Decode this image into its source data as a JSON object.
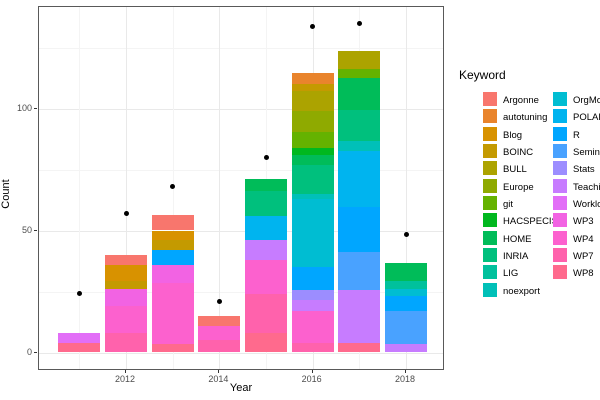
{
  "figure": {
    "y_axis": {
      "title": "Count",
      "tick_labels": [
        "0",
        "50",
        "100"
      ]
    },
    "x_axis": {
      "title": "Year",
      "tick_labels": [
        "2012",
        "2014",
        "2016",
        "2018"
      ]
    },
    "legend": {
      "title": "Keyword",
      "column1": [
        "Argonne",
        "autotuning",
        "Blog",
        "BOINC",
        "BULL",
        "Europe",
        "git",
        "HACSPECIS",
        "HOME",
        "INRIA",
        "LIG",
        "noexport"
      ],
      "column2": [
        "OrgMode",
        "POLARIS",
        "R",
        "Seminar",
        "Stats",
        "Teaching",
        "Workload",
        "WP3",
        "WP4",
        "WP7",
        "WP8"
      ]
    }
  },
  "chart_data": {
    "type": "bar",
    "stacked": true,
    "title": "",
    "xlabel": "Year",
    "ylabel": "Count",
    "legend_title": "Keyword",
    "legend_position": "right",
    "grid": true,
    "background": "#ffffff",
    "ylim": [
      -7.5,
      141.5
    ],
    "yticks": [
      0,
      50,
      100
    ],
    "yticks_minor": [
      25,
      75,
      125
    ],
    "xticks": [
      2012,
      2014,
      2016,
      2018
    ],
    "xticks_minor": [
      2011,
      2013,
      2015,
      2017
    ],
    "x": [
      2011,
      2012,
      2013,
      2014,
      2015,
      2016,
      2017,
      2018
    ],
    "palette": {
      "Argonne": "#F8766D",
      "autotuning": "#E9842C",
      "Blog": "#D89200",
      "BOINC": "#C49A00",
      "BULL": "#ACA300",
      "Europe": "#8FAA00",
      "git": "#65B200",
      "HACSPECIS": "#00B81F",
      "HOME": "#00BC59",
      "INRIA": "#00C07D",
      "LIG": "#00C19C",
      "noexport": "#00C0B8",
      "OrgMode": "#00BDD2",
      "POLARIS": "#00B4EF",
      "R": "#00A6FF",
      "Seminar": "#49A2FF",
      "Stats": "#9C8DFF",
      "Teaching": "#C77CFF",
      "Workload": "#E26EF7",
      "WP3": "#F263E3",
      "WP4": "#FC61CE",
      "WP7": "#FF62AC",
      "WP8": "#FF6A8D"
    },
    "bars": [
      {
        "year": 2011,
        "total": 8,
        "segments_bottom_to_top": [
          [
            "WP8",
            4
          ],
          [
            "Workload",
            4
          ]
        ]
      },
      {
        "year": 2012,
        "total": 40,
        "segments_bottom_to_top": [
          [
            "WP7",
            8
          ],
          [
            "WP4",
            11
          ],
          [
            "WP3",
            7
          ],
          [
            "BOINC",
            3.5
          ],
          [
            "Blog",
            6.5
          ],
          [
            "Argonne",
            4
          ]
        ]
      },
      {
        "year": 2013,
        "total": 56.5,
        "segments_bottom_to_top": [
          [
            "WP8",
            3.5
          ],
          [
            "WP4",
            25
          ],
          [
            "WP3",
            7.5
          ],
          [
            "R",
            6
          ],
          [
            "BOINC",
            4
          ],
          [
            "Blog",
            4
          ],
          [
            "Argonne",
            6.5
          ]
        ]
      },
      {
        "year": 2014,
        "total": 15,
        "segments_bottom_to_top": [
          [
            "WP7",
            5
          ],
          [
            "WP4",
            6
          ],
          [
            "Argonne",
            4
          ]
        ]
      },
      {
        "year": 2015,
        "total": 71,
        "segments_bottom_to_top": [
          [
            "WP8",
            8
          ],
          [
            "WP7",
            16
          ],
          [
            "WP4",
            14
          ],
          [
            "Teaching",
            8
          ],
          [
            "POLARIS",
            10
          ],
          [
            "INRIA",
            10
          ],
          [
            "HOME",
            5
          ]
        ]
      },
      {
        "year": 2016,
        "total": 114.5,
        "segments_bottom_to_top": [
          [
            "WP7",
            4
          ],
          [
            "WP4",
            13
          ],
          [
            "Teaching",
            4.5
          ],
          [
            "Stats",
            4
          ],
          [
            "R",
            9.5
          ],
          [
            "OrgMode",
            28
          ],
          [
            "noexport",
            2
          ],
          [
            "INRIA",
            12
          ],
          [
            "HOME",
            4
          ],
          [
            "HACSPECIS",
            3
          ],
          [
            "git",
            6.5
          ],
          [
            "Europe",
            8.5
          ],
          [
            "BULL",
            8
          ],
          [
            "BOINC",
            3
          ],
          [
            "autotuning",
            4.5
          ]
        ]
      },
      {
        "year": 2017,
        "total": 123.5,
        "segments_bottom_to_top": [
          [
            "WP8",
            4
          ],
          [
            "Teaching",
            21.5
          ],
          [
            "Seminar",
            15.5
          ],
          [
            "R",
            18.5
          ],
          [
            "POLARIS",
            23
          ],
          [
            "noexport",
            4
          ],
          [
            "INRIA",
            13
          ],
          [
            "HOME",
            13
          ],
          [
            "git",
            3.5
          ],
          [
            "BULL",
            7.5
          ]
        ]
      },
      {
        "year": 2018,
        "total": 36.5,
        "segments_bottom_to_top": [
          [
            "Teaching",
            3.5
          ],
          [
            "Seminar",
            13.5
          ],
          [
            "R",
            6
          ],
          [
            "OrgMode",
            3
          ],
          [
            "LIG",
            3.5
          ],
          [
            "HOME",
            7
          ]
        ]
      }
    ],
    "points": {
      "shape": "circle",
      "color": "#000000",
      "x": [
        2011,
        2012,
        2013,
        2014,
        2015,
        2016,
        2017,
        2018
      ],
      "values": [
        24,
        57,
        68,
        21,
        80,
        133.5,
        135,
        48.5
      ]
    }
  }
}
